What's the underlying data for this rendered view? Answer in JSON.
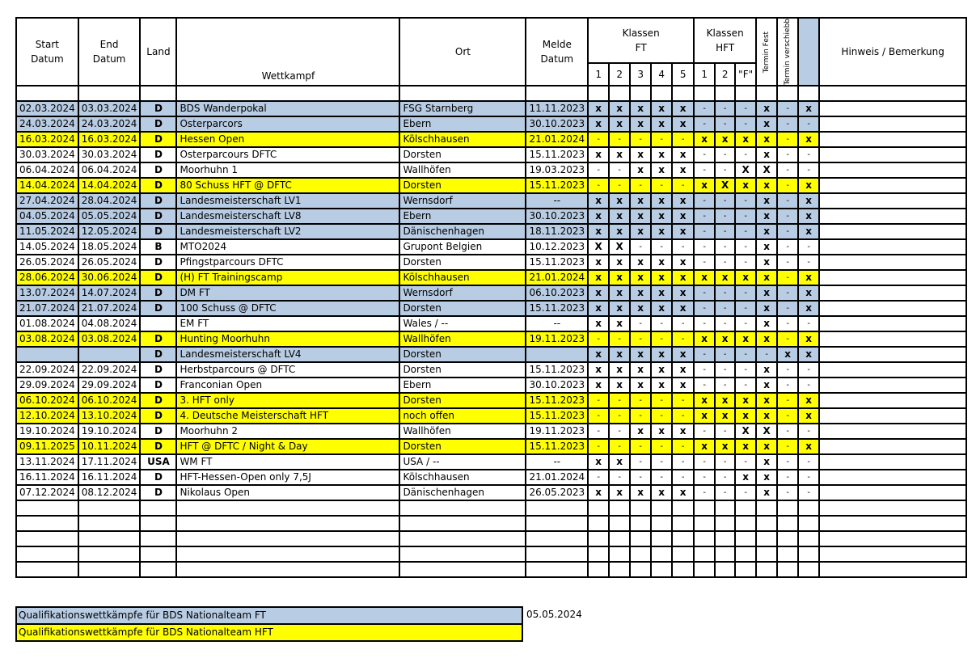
{
  "header": {
    "start": [
      "Start",
      "Datum"
    ],
    "end": [
      "End",
      "Datum"
    ],
    "land": "Land",
    "wettkampf": "Wettkampf",
    "ort": "Ort",
    "melde": [
      "Melde",
      "Datum"
    ],
    "klassen_ft": [
      "Klassen",
      "FT"
    ],
    "klassen_hft": [
      "Klassen",
      "HFT"
    ],
    "ft_cols": [
      "1",
      "2",
      "3",
      "4",
      "5"
    ],
    "hft_cols": [
      "1",
      "2",
      "\"F\""
    ],
    "termin_fest": "Termin Fest",
    "termin_verschiebb": "Termin verschiebb",
    "hinweis": "Hinweis / Bemerkung"
  },
  "colors": {
    "blue": "#b8cce4",
    "yellow": "#ffff00"
  },
  "rows": [
    {
      "style": "blue",
      "start": "02.03.2024",
      "end": "03.03.2024",
      "land": "D",
      "name": "BDS Wanderpokal",
      "ort": "FSG Starnberg",
      "melde": "11.11.2023",
      "marks": [
        "x",
        "x",
        "x",
        "x",
        "x",
        "-",
        "-",
        "-",
        "x",
        "-",
        "x"
      ]
    },
    {
      "style": "blue",
      "start": "24.03.2024",
      "end": "24.03.2024",
      "land": "D",
      "name": "Osterparcors",
      "ort": "Ebern",
      "melde": "30.10.2023",
      "marks": [
        "x",
        "x",
        "x",
        "x",
        "x",
        "-",
        "-",
        "-",
        "x",
        "-",
        "-"
      ]
    },
    {
      "style": "yellow",
      "start": "16.03.2024",
      "end": "16.03.2024",
      "land": "D",
      "name": "Hessen Open",
      "ort": "Kölschhausen",
      "melde": "21.01.2024",
      "marks": [
        "-",
        "-",
        "-",
        "-",
        "-",
        "x",
        "x",
        "x",
        "x",
        "-",
        "x"
      ]
    },
    {
      "style": "white",
      "start": "30.03.2024",
      "end": "30.03.2024",
      "land": "D",
      "name": "Osterparcours DFTC",
      "ort": "Dorsten",
      "melde": "15.11.2023",
      "marks": [
        "x",
        "x",
        "x",
        "x",
        "x",
        "-",
        "-",
        "-",
        "x",
        "-",
        "-"
      ]
    },
    {
      "style": "white",
      "start": "06.04.2024",
      "end": "06.04.2024",
      "land": "D",
      "name": "Moorhuhn 1",
      "ort": "Wallhöfen",
      "melde": "19.03.2023",
      "marks": [
        "-",
        "-",
        "x",
        "x",
        "x",
        "-",
        "-",
        "X",
        "X",
        "-",
        "-"
      ]
    },
    {
      "style": "yellow",
      "start": "14.04.2024",
      "end": "14.04.2024",
      "land": "D",
      "name": "80 Schuss HFT @ DFTC",
      "ort": "Dorsten",
      "melde": "15.11.2023",
      "marks": [
        "-",
        "-",
        "-",
        "-",
        "-",
        "x",
        "X",
        "x",
        "x",
        "-",
        "x"
      ]
    },
    {
      "style": "blue",
      "start": "27.04.2024",
      "end": "28.04.2024",
      "land": "D",
      "name": "Landesmeisterschaft LV1",
      "ort": "Wernsdorf",
      "melde": "--",
      "marks": [
        "x",
        "x",
        "x",
        "x",
        "x",
        "-",
        "-",
        "-",
        "x",
        "-",
        "x"
      ]
    },
    {
      "style": "blue",
      "start": "04.05.2024",
      "end": "05.05.2024",
      "land": "D",
      "name": "Landesmeisterschaft LV8",
      "ort": "Ebern",
      "melde": "30.10.2023",
      "marks": [
        "x",
        "x",
        "x",
        "x",
        "x",
        "-",
        "-",
        "-",
        "x",
        "-",
        "x"
      ]
    },
    {
      "style": "blue",
      "start": "11.05.2024",
      "end": "12.05.2024",
      "land": "D",
      "name": "Landesmeisterschaft LV2",
      "ort": "Dänischenhagen",
      "melde": "18.11.2023",
      "marks": [
        "x",
        "x",
        "x",
        "x",
        "x",
        "-",
        "-",
        "-",
        "x",
        "-",
        "x"
      ]
    },
    {
      "style": "white",
      "start": "14.05.2024",
      "end": "18.05.2024",
      "land": "B",
      "name": "MTO2024",
      "ort": "Grupont Belgien",
      "melde": "10.12.2023",
      "marks": [
        "X",
        "X",
        "-",
        "-",
        "-",
        "-",
        "-",
        "-",
        "x",
        "-",
        "-"
      ]
    },
    {
      "style": "white",
      "start": "26.05.2024",
      "end": "26.05.2024",
      "land": "D",
      "name": "Pfingstparcours DFTC",
      "ort": "Dorsten",
      "melde": "15.11.2023",
      "marks": [
        "x",
        "x",
        "x",
        "x",
        "x",
        "-",
        "-",
        "-",
        "x",
        "-",
        "-"
      ]
    },
    {
      "style": "yellow",
      "start": "28.06.2024",
      "end": "30.06.2024",
      "land": "D",
      "name": "(H) FT Trainingscamp",
      "ort": "Kölschhausen",
      "melde": "21.01.2024",
      "marks": [
        "x",
        "x",
        "x",
        "x",
        "x",
        "x",
        "x",
        "x",
        "x",
        "-",
        "x"
      ]
    },
    {
      "style": "blue",
      "start": "13.07.2024",
      "end": "14.07.2024",
      "land": "D",
      "name": "DM FT",
      "ort": "Wernsdorf",
      "melde": "06.10.2023",
      "marks": [
        "x",
        "x",
        "x",
        "x",
        "x",
        "-",
        "-",
        "-",
        "x",
        "-",
        "x"
      ]
    },
    {
      "style": "blue",
      "start": "21.07.2024",
      "end": "21.07.2024",
      "land": "D",
      "name": "100 Schuss @ DFTC",
      "ort": "Dorsten",
      "melde": "15.11.2023",
      "marks": [
        "x",
        "x",
        "x",
        "x",
        "x",
        "-",
        "-",
        "-",
        "x",
        "-",
        "x"
      ]
    },
    {
      "style": "white",
      "start": "01.08.2024",
      "end": "04.08.2024",
      "land": "",
      "name": "EM FT",
      "ort": "Wales / --",
      "melde": "--",
      "marks": [
        "x",
        "x",
        "-",
        "-",
        "-",
        "-",
        "-",
        "-",
        "x",
        "-",
        "-"
      ]
    },
    {
      "style": "yellow",
      "start": "03.08.2024",
      "end": "03.08.2024",
      "land": "D",
      "name": "Hunting Moorhuhn",
      "ort": "Wallhöfen",
      "melde": "19.11.2023",
      "marks": [
        "-",
        "-",
        "-",
        "-",
        "-",
        "x",
        "x",
        "x",
        "x",
        "-",
        "x"
      ]
    },
    {
      "style": "blue",
      "start": "",
      "end": "",
      "land": "D",
      "name": "Landesmeisterschaft LV4",
      "ort": "Dorsten",
      "melde": "",
      "marks": [
        "x",
        "x",
        "x",
        "x",
        "x",
        "-",
        "-",
        "-",
        "-",
        "x",
        "x"
      ]
    },
    {
      "style": "white",
      "start": "22.09.2024",
      "end": "22.09.2024",
      "land": "D",
      "name": "Herbstparcours @ DFTC",
      "ort": "Dorsten",
      "melde": "15.11.2023",
      "marks": [
        "x",
        "x",
        "x",
        "x",
        "x",
        "-",
        "-",
        "-",
        "x",
        "-",
        "-"
      ]
    },
    {
      "style": "white",
      "start": "29.09.2024",
      "end": "29.09.2024",
      "land": "D",
      "name": "Franconian Open",
      "ort": "Ebern",
      "melde": "30.10.2023",
      "marks": [
        "x",
        "x",
        "x",
        "x",
        "x",
        "-",
        "-",
        "-",
        "x",
        "-",
        "-"
      ]
    },
    {
      "style": "yellow",
      "start": "06.10.2024",
      "end": "06.10.2024",
      "land": "D",
      "name": "3. HFT only",
      "ort": "Dorsten",
      "melde": "15.11.2023",
      "marks": [
        "-",
        "-",
        "-",
        "-",
        "-",
        "x",
        "x",
        "x",
        "x",
        "-",
        "x"
      ]
    },
    {
      "style": "yellow",
      "start": "12.10.2024",
      "end": "13.10.2024",
      "land": "D",
      "name": "4. Deutsche Meisterschaft HFT",
      "ort": "noch offen",
      "melde": "15.11.2023",
      "marks": [
        "-",
        "-",
        "-",
        "-",
        "-",
        "x",
        "x",
        "x",
        "x",
        "-",
        "x"
      ]
    },
    {
      "style": "white",
      "start": "19.10.2024",
      "end": "19.10.2024",
      "land": "D",
      "name": "Moorhuhn 2",
      "ort": "Wallhöfen",
      "melde": "19.11.2023",
      "marks": [
        "-",
        "-",
        "x",
        "x",
        "x",
        "-",
        "-",
        "X",
        "X",
        "-",
        "-"
      ]
    },
    {
      "style": "yellow",
      "start": "09.11.2025",
      "end": "10.11.2024",
      "land": "D",
      "name": "HFT @ DFTC / Night & Day",
      "ort": "Dorsten",
      "melde": "15.11.2023",
      "marks": [
        "-",
        "-",
        "-",
        "-",
        "-",
        "x",
        "x",
        "x",
        "x",
        "-",
        "x"
      ]
    },
    {
      "style": "white",
      "start": "13.11.2024",
      "end": "17.11.2024",
      "land": "USA",
      "name": "WM FT",
      "ort": "USA / --",
      "melde": "--",
      "marks": [
        "x",
        "x",
        "-",
        "-",
        "-",
        "-",
        "-",
        "-",
        "x",
        "-",
        "-"
      ]
    },
    {
      "style": "white",
      "start": "16.11.2024",
      "end": "16.11.2024",
      "land": "D",
      "name": "HFT-Hessen-Open only 7,5J",
      "ort": "Kölschhausen",
      "melde": "21.01.2024",
      "marks": [
        "-",
        "-",
        "-",
        "-",
        "-",
        "-",
        "-",
        "x",
        "x",
        "-",
        "-"
      ]
    },
    {
      "style": "white",
      "start": "07.12.2024",
      "end": "08.12.2024",
      "land": "D",
      "name": "Nikolaus Open",
      "ort": "Dänischenhagen",
      "melde": "26.05.2023",
      "marks": [
        "x",
        "x",
        "x",
        "x",
        "x",
        "-",
        "-",
        "-",
        "x",
        "-",
        "-"
      ]
    }
  ],
  "legend": {
    "ft": "Qualifikationswettkämpfe für BDS Nationalteam FT",
    "hft": "Qualifikationswettkämpfe für BDS Nationalteam HFT",
    "date": "05.05.2024"
  }
}
